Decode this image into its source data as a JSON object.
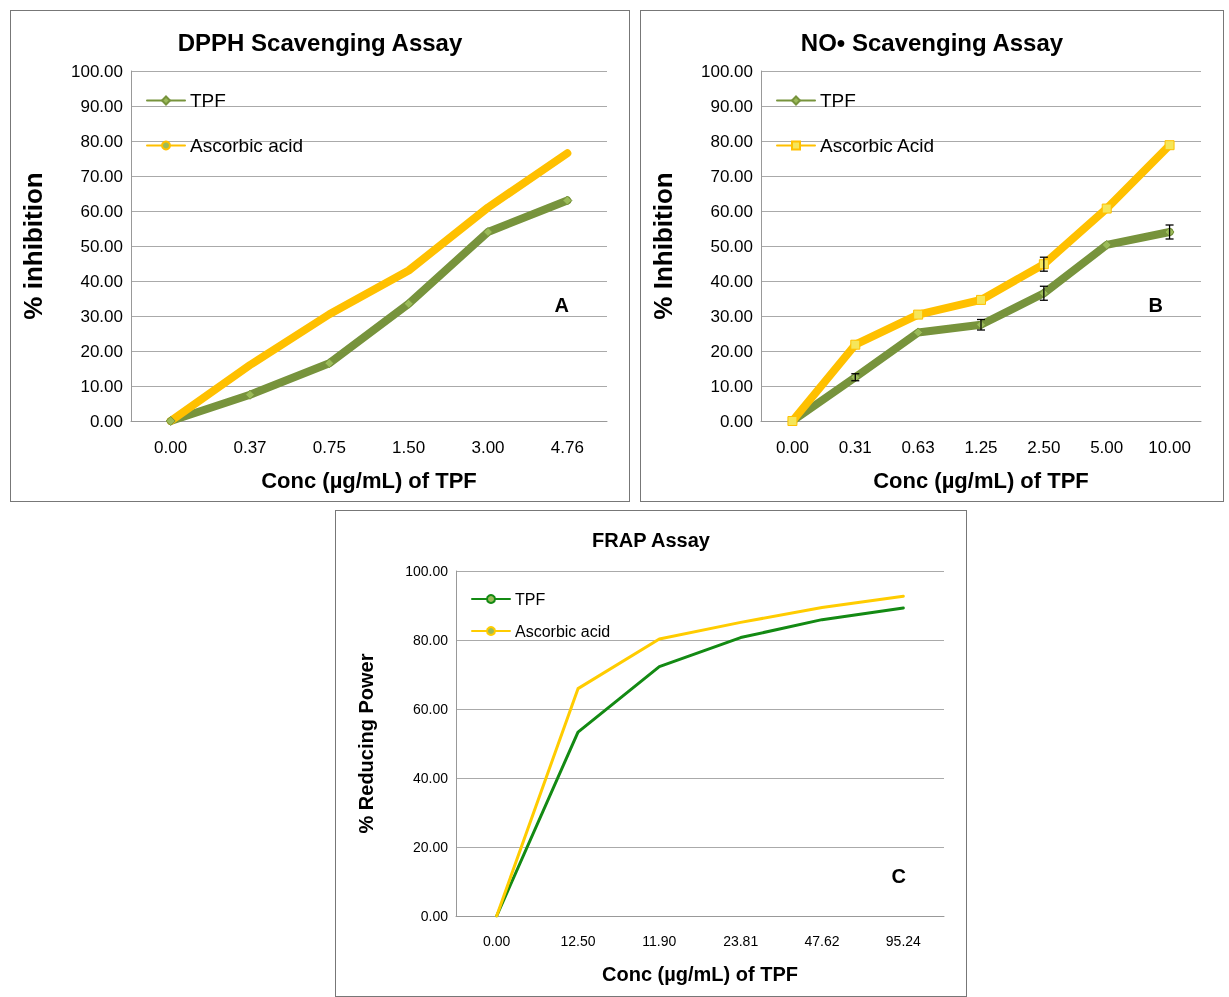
{
  "chart_data": [
    {
      "type": "line",
      "title": "DPPH Scavenging Assay",
      "xlabel": "Conc (µg/mL) of TPF",
      "ylabel": "% inhibition",
      "categories": [
        "0.00",
        "0.37",
        "0.75",
        "1.50",
        "3.00",
        "4.76"
      ],
      "series": [
        {
          "name": "TPF",
          "color": "#77933c",
          "marker": "diamond",
          "values": [
            0,
            7.5,
            16.5,
            33.5,
            54,
            63
          ]
        },
        {
          "name": "Ascorbic acid",
          "color": "#ffc000",
          "marker": "none",
          "values": [
            0,
            16,
            30.5,
            43,
            61,
            76.5
          ]
        }
      ],
      "ylim": [
        0,
        100
      ],
      "yticks": [
        {
          "value": 0,
          "label": "0.00"
        },
        {
          "value": 10,
          "label": "10.00"
        },
        {
          "value": 20,
          "label": "20.00"
        },
        {
          "value": 30,
          "label": "30.00"
        },
        {
          "value": 40,
          "label": "40.00"
        },
        {
          "value": 50,
          "label": "50.00"
        },
        {
          "value": 60,
          "label": "60.00"
        },
        {
          "value": 70,
          "label": "70.00"
        },
        {
          "value": 80,
          "label": "80.00"
        },
        {
          "value": 90,
          "label": "90.00"
        },
        {
          "value": 100,
          "label": "100.00"
        }
      ],
      "grid": "y",
      "legend": "top left",
      "annotations": [
        "A"
      ]
    },
    {
      "type": "line",
      "title": "NO• Scavenging Assay",
      "xlabel": "Conc (µg/mL) of TPF",
      "ylabel": "% Inhibition",
      "categories": [
        "0.00",
        "0.31",
        "0.63",
        "1.25",
        "2.50",
        "5.00",
        "10.00"
      ],
      "series": [
        {
          "name": "TPF",
          "color": "#77933c",
          "marker": "diamond",
          "values": [
            0,
            12.5,
            25.3,
            27.5,
            36.5,
            50.3,
            54
          ],
          "errors": [
            null,
            1,
            null,
            1.5,
            2,
            null,
            2
          ]
        },
        {
          "name": "Ascorbic Acid",
          "color": "#ffc000",
          "marker": "square",
          "values": [
            0,
            21.8,
            30.4,
            34.6,
            44.8,
            60.7,
            78.8
          ],
          "errors": [
            null,
            null,
            null,
            null,
            2,
            null,
            null
          ]
        }
      ],
      "ylim": [
        0,
        100
      ],
      "yticks": [
        {
          "value": 0,
          "label": "0.00"
        },
        {
          "value": 10,
          "label": "10.00"
        },
        {
          "value": 20,
          "label": "20.00"
        },
        {
          "value": 30,
          "label": "30.00"
        },
        {
          "value": 40,
          "label": "40.00"
        },
        {
          "value": 50,
          "label": "50.00"
        },
        {
          "value": 60,
          "label": "60.00"
        },
        {
          "value": 70,
          "label": "70.00"
        },
        {
          "value": 80,
          "label": "80.00"
        },
        {
          "value": 90,
          "label": "90.00"
        },
        {
          "value": 100,
          "label": "100.00"
        }
      ],
      "grid": "y",
      "legend": "top left",
      "annotations": [
        "B"
      ]
    },
    {
      "type": "line",
      "title": "FRAP Assay",
      "xlabel": "Conc (µg/mL) of TPF",
      "ylabel": "% Reducing Power",
      "categories": [
        "0.00",
        "12.50",
        "11.90",
        "23.81",
        "47.62",
        "95.24"
      ],
      "series": [
        {
          "name": "TPF",
          "color": "#138a13",
          "marker": "none",
          "values": [
            0,
            53.3,
            72.3,
            80.7,
            85.9,
            89.3
          ]
        },
        {
          "name": "Ascorbic acid",
          "color": "#ffcc00",
          "marker": "none",
          "values": [
            0,
            65.9,
            80.3,
            85.1,
            89.4,
            92.7
          ]
        }
      ],
      "ylim": [
        0,
        100
      ],
      "yticks": [
        {
          "value": 0,
          "label": "0.00"
        },
        {
          "value": 20,
          "label": "20.00"
        },
        {
          "value": 40,
          "label": "40.00"
        },
        {
          "value": 60,
          "label": "60.00"
        },
        {
          "value": 80,
          "label": "80.00"
        },
        {
          "value": 100,
          "label": "100.00"
        }
      ],
      "grid": "y",
      "legend": "top left",
      "annotations": [
        "C"
      ]
    }
  ]
}
